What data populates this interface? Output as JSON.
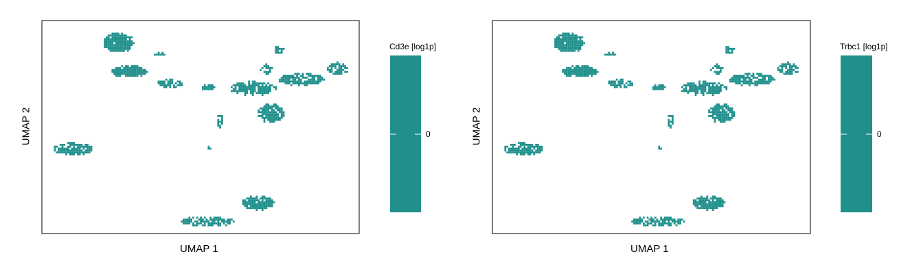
{
  "chart_data": [
    {
      "type": "scatter",
      "xlabel": "UMAP 1",
      "ylabel": "UMAP 2",
      "colorbar": {
        "title": "Cd3e [log1p]",
        "ticks": [
          "0"
        ]
      },
      "point_color": "#21908c",
      "clusters": [
        {
          "cx": 3.0,
          "cy": 9.0,
          "w": 1.2,
          "h": 1.4,
          "n": 170
        },
        {
          "cx": 3.4,
          "cy": 6.8,
          "w": 1.4,
          "h": 0.8,
          "n": 110
        },
        {
          "cx": 4.6,
          "cy": 8.1,
          "w": 0.35,
          "h": 0.2,
          "n": 10
        },
        {
          "cx": 5.0,
          "cy": 5.9,
          "w": 1.0,
          "h": 0.6,
          "n": 35
        },
        {
          "cx": 6.5,
          "cy": 5.6,
          "w": 0.6,
          "h": 0.4,
          "n": 20
        },
        {
          "cx": 7.0,
          "cy": 3.0,
          "w": 0.3,
          "h": 0.9,
          "n": 8
        },
        {
          "cx": 8.3,
          "cy": 5.5,
          "w": 1.8,
          "h": 1.0,
          "n": 90
        },
        {
          "cx": 8.8,
          "cy": 6.9,
          "w": 0.5,
          "h": 0.8,
          "n": 16
        },
        {
          "cx": 9.3,
          "cy": 8.4,
          "w": 0.4,
          "h": 0.5,
          "n": 14
        },
        {
          "cx": 10.2,
          "cy": 6.2,
          "w": 1.8,
          "h": 0.9,
          "n": 100
        },
        {
          "cx": 11.6,
          "cy": 7.0,
          "w": 0.8,
          "h": 0.9,
          "n": 45
        },
        {
          "cx": 9.0,
          "cy": 3.6,
          "w": 1.0,
          "h": 1.4,
          "n": 95
        },
        {
          "cx": 6.6,
          "cy": 1.0,
          "w": 0.08,
          "h": 0.08,
          "n": 2
        },
        {
          "cx": 1.2,
          "cy": 0.9,
          "w": 1.6,
          "h": 0.9,
          "n": 85
        },
        {
          "cx": 8.5,
          "cy": -3.2,
          "w": 1.3,
          "h": 1.0,
          "n": 110
        },
        {
          "cx": 6.5,
          "cy": -4.6,
          "w": 2.1,
          "h": 0.7,
          "n": 75
        }
      ],
      "xlim": [
        0,
        12.5
      ],
      "ylim": [
        -5.6,
        10.6
      ]
    },
    {
      "type": "scatter",
      "xlabel": "UMAP 1",
      "ylabel": "UMAP 2",
      "colorbar": {
        "title": "Trbc1 [log1p]",
        "ticks": [
          "0"
        ]
      },
      "point_color": "#21908c",
      "clusters": "same as panel 1",
      "xlim": [
        0,
        12.5
      ],
      "ylim": [
        -5.6,
        10.6
      ]
    }
  ]
}
